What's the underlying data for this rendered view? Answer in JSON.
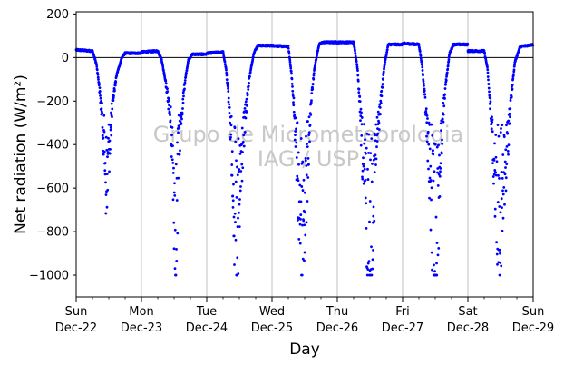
{
  "chart_data": {
    "type": "scatter",
    "title": "",
    "xlabel": "Day",
    "ylabel": "Net radiation (W/m²)",
    "ylim": [
      -1100,
      210
    ],
    "xlim": [
      "2019-12-22",
      "2019-12-29"
    ],
    "y_ticks": [
      200,
      0,
      -200,
      -400,
      -600,
      -800,
      -1000
    ],
    "x_ticks": [
      {
        "weekday": "Sun",
        "date": "Dec-22"
      },
      {
        "weekday": "Mon",
        "date": "Dec-23"
      },
      {
        "weekday": "Tue",
        "date": "Dec-24"
      },
      {
        "weekday": "Wed",
        "date": "Dec-25"
      },
      {
        "weekday": "Thu",
        "date": "Dec-26"
      },
      {
        "weekday": "Fri",
        "date": "Dec-27"
      },
      {
        "weekday": "Sat",
        "date": "Dec-28"
      },
      {
        "weekday": "Sun",
        "date": "Dec-29"
      }
    ],
    "grid": "vertical",
    "zero_line": true,
    "marker_color": "#0000ff",
    "watermark": [
      "Grupo de Micrometeorologia",
      "IAG / USP"
    ],
    "daily_profiles": [
      {
        "date": "2019-12-22",
        "points": [
          [
            0.0,
            35
          ],
          [
            0.25,
            30
          ],
          [
            0.31,
            -30
          ],
          [
            0.35,
            -120
          ],
          [
            0.4,
            -280
          ],
          [
            0.44,
            -450
          ],
          [
            0.47,
            -600
          ],
          [
            0.5,
            -420
          ],
          [
            0.53,
            -330
          ],
          [
            0.57,
            -180
          ],
          [
            0.62,
            -80
          ],
          [
            0.7,
            0
          ],
          [
            0.75,
            20
          ]
        ]
      },
      {
        "date": "2019-12-23",
        "points": [
          [
            0.0,
            25
          ],
          [
            0.25,
            30
          ],
          [
            0.31,
            -10
          ],
          [
            0.35,
            -80
          ],
          [
            0.4,
            -170
          ],
          [
            0.45,
            -300
          ],
          [
            0.5,
            -600
          ],
          [
            0.53,
            -850
          ],
          [
            0.57,
            -400
          ],
          [
            0.62,
            -250
          ],
          [
            0.67,
            -100
          ],
          [
            0.72,
            -10
          ],
          [
            0.78,
            15
          ]
        ]
      },
      {
        "date": "2019-12-24",
        "points": [
          [
            0.0,
            20
          ],
          [
            0.25,
            25
          ],
          [
            0.3,
            -60
          ],
          [
            0.35,
            -250
          ],
          [
            0.4,
            -500
          ],
          [
            0.44,
            -780
          ],
          [
            0.47,
            -900
          ],
          [
            0.51,
            -600
          ],
          [
            0.55,
            -400
          ],
          [
            0.6,
            -250
          ],
          [
            0.65,
            -100
          ],
          [
            0.72,
            20
          ],
          [
            0.78,
            55
          ]
        ]
      },
      {
        "date": "2019-12-25",
        "points": [
          [
            0.0,
            55
          ],
          [
            0.25,
            50
          ],
          [
            0.3,
            -80
          ],
          [
            0.34,
            -250
          ],
          [
            0.38,
            -480
          ],
          [
            0.42,
            -640
          ],
          [
            0.46,
            -720
          ],
          [
            0.5,
            -680
          ],
          [
            0.55,
            -450
          ],
          [
            0.6,
            -200
          ],
          [
            0.65,
            -50
          ],
          [
            0.72,
            60
          ],
          [
            0.78,
            70
          ]
        ]
      },
      {
        "date": "2019-12-26",
        "points": [
          [
            0.0,
            70
          ],
          [
            0.25,
            70
          ],
          [
            0.31,
            -50
          ],
          [
            0.36,
            -300
          ],
          [
            0.4,
            -520
          ],
          [
            0.44,
            -680
          ],
          [
            0.48,
            -730
          ],
          [
            0.52,
            -700
          ],
          [
            0.56,
            -560
          ],
          [
            0.6,
            -400
          ],
          [
            0.65,
            -250
          ],
          [
            0.72,
            -40
          ],
          [
            0.78,
            60
          ]
        ]
      },
      {
        "date": "2019-12-27",
        "points": [
          [
            0.0,
            65
          ],
          [
            0.25,
            60
          ],
          [
            0.3,
            -40
          ],
          [
            0.35,
            -220
          ],
          [
            0.4,
            -450
          ],
          [
            0.45,
            -650
          ],
          [
            0.5,
            -880
          ],
          [
            0.55,
            -600
          ],
          [
            0.6,
            -350
          ],
          [
            0.65,
            -150
          ],
          [
            0.72,
            20
          ],
          [
            0.78,
            60
          ]
        ]
      },
      {
        "date": "2019-12-28",
        "points": [
          [
            0.0,
            30
          ],
          [
            0.25,
            30
          ],
          [
            0.3,
            -50
          ],
          [
            0.35,
            -250
          ],
          [
            0.4,
            -480
          ],
          [
            0.45,
            -650
          ],
          [
            0.5,
            -700
          ],
          [
            0.55,
            -600
          ],
          [
            0.6,
            -420
          ],
          [
            0.65,
            -220
          ],
          [
            0.72,
            -20
          ],
          [
            0.8,
            50
          ],
          [
            1.0,
            60
          ]
        ]
      }
    ]
  }
}
